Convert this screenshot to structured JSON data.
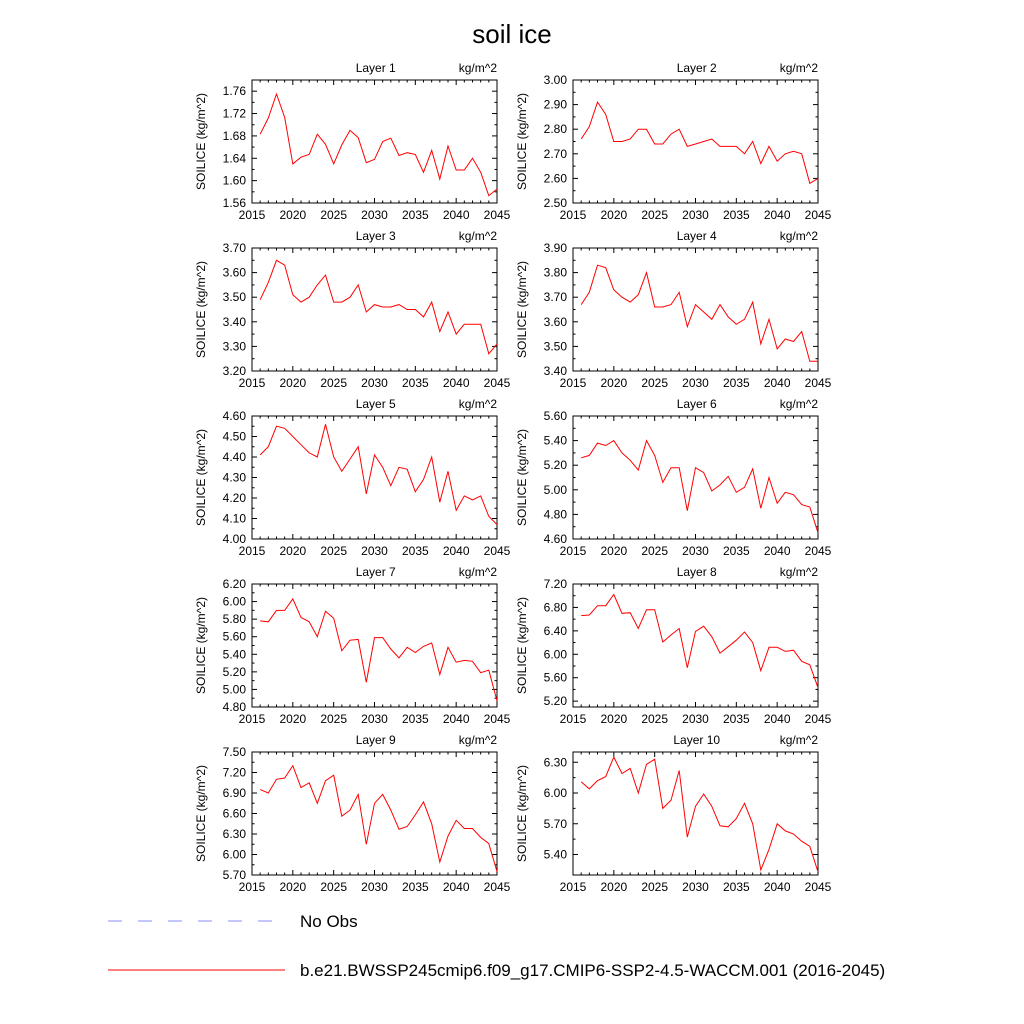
{
  "title": "soil ice",
  "legend": [
    {
      "label": "No Obs",
      "color": "#8c8cff",
      "style": "dashed"
    },
    {
      "label": "b.e21.BWSSP245cmip6.f09_g17.CMIP6-SSP2-4.5-WACCM.001 (2016-2045)",
      "color": "#ff0000",
      "style": "solid"
    }
  ],
  "chart_data": [
    {
      "type": "line",
      "title": "Layer 1",
      "units": "kg/m^2",
      "ylabel": "SOILICE  (kg/m^2)",
      "x_start": 2016,
      "xlim": [
        2015,
        2045
      ],
      "xticks": [
        "2015",
        "2020",
        "2025",
        "2030",
        "2035",
        "2040",
        "2045"
      ],
      "ylim": [
        1.56,
        1.78
      ],
      "yticks": [
        "1.56",
        "1.60",
        "1.64",
        "1.68",
        "1.72",
        "1.76"
      ],
      "series": [
        {
          "color": "#ff0000",
          "values": [
            1.683,
            1.712,
            1.755,
            1.713,
            1.63,
            1.642,
            1.647,
            1.683,
            1.665,
            1.63,
            1.664,
            1.69,
            1.677,
            1.632,
            1.638,
            1.67,
            1.676,
            1.645,
            1.65,
            1.647,
            1.615,
            1.654,
            1.603,
            1.662,
            1.619,
            1.619,
            1.64,
            1.615,
            1.573,
            1.585
          ]
        }
      ]
    },
    {
      "type": "line",
      "title": "Layer 2",
      "units": "kg/m^2",
      "ylabel": "SOILICE  (kg/m^2)",
      "x_start": 2016,
      "xlim": [
        2015,
        2045
      ],
      "xticks": [
        "2015",
        "2020",
        "2025",
        "2030",
        "2035",
        "2040",
        "2045"
      ],
      "ylim": [
        2.5,
        3.0
      ],
      "yticks": [
        "2.50",
        "2.60",
        "2.70",
        "2.80",
        "2.90",
        "3.00"
      ],
      "series": [
        {
          "color": "#ff0000",
          "values": [
            2.76,
            2.81,
            2.91,
            2.86,
            2.75,
            2.75,
            2.76,
            2.8,
            2.8,
            2.74,
            2.74,
            2.78,
            2.8,
            2.73,
            2.74,
            2.75,
            2.76,
            2.73,
            2.73,
            2.73,
            2.7,
            2.75,
            2.66,
            2.73,
            2.67,
            2.7,
            2.71,
            2.7,
            2.58,
            2.6
          ]
        }
      ]
    },
    {
      "type": "line",
      "title": "Layer 3",
      "units": "kg/m^2",
      "ylabel": "SOILICE  (kg/m^2)",
      "x_start": 2016,
      "xlim": [
        2015,
        2045
      ],
      "xticks": [
        "2015",
        "2020",
        "2025",
        "2030",
        "2035",
        "2040",
        "2045"
      ],
      "ylim": [
        3.2,
        3.7
      ],
      "yticks": [
        "3.20",
        "3.30",
        "3.40",
        "3.50",
        "3.60",
        "3.70"
      ],
      "series": [
        {
          "color": "#ff0000",
          "values": [
            3.49,
            3.56,
            3.65,
            3.63,
            3.51,
            3.48,
            3.5,
            3.55,
            3.59,
            3.48,
            3.48,
            3.5,
            3.55,
            3.44,
            3.47,
            3.46,
            3.46,
            3.47,
            3.45,
            3.45,
            3.42,
            3.48,
            3.36,
            3.44,
            3.35,
            3.39,
            3.39,
            3.39,
            3.27,
            3.31
          ]
        }
      ]
    },
    {
      "type": "line",
      "title": "Layer 4",
      "units": "kg/m^2",
      "ylabel": "SOILICE  (kg/m^2)",
      "x_start": 2016,
      "xlim": [
        2015,
        2045
      ],
      "xticks": [
        "2015",
        "2020",
        "2025",
        "2030",
        "2035",
        "2040",
        "2045"
      ],
      "ylim": [
        3.4,
        3.9
      ],
      "yticks": [
        "3.40",
        "3.50",
        "3.60",
        "3.70",
        "3.80",
        "3.90"
      ],
      "series": [
        {
          "color": "#ff0000",
          "values": [
            3.67,
            3.72,
            3.83,
            3.82,
            3.73,
            3.7,
            3.68,
            3.71,
            3.8,
            3.66,
            3.66,
            3.67,
            3.72,
            3.58,
            3.67,
            3.64,
            3.61,
            3.67,
            3.62,
            3.59,
            3.61,
            3.68,
            3.51,
            3.61,
            3.49,
            3.53,
            3.52,
            3.56,
            3.44,
            3.44
          ]
        }
      ]
    },
    {
      "type": "line",
      "title": "Layer 5",
      "units": "kg/m^2",
      "ylabel": "SOILICE  (kg/m^2)",
      "x_start": 2016,
      "xlim": [
        2015,
        2045
      ],
      "xticks": [
        "2015",
        "2020",
        "2025",
        "2030",
        "2035",
        "2040",
        "2045"
      ],
      "ylim": [
        4.0,
        4.6
      ],
      "yticks": [
        "4.00",
        "4.10",
        "4.20",
        "4.30",
        "4.40",
        "4.50",
        "4.60"
      ],
      "series": [
        {
          "color": "#ff0000",
          "values": [
            4.41,
            4.45,
            4.55,
            4.54,
            4.5,
            4.46,
            4.42,
            4.4,
            4.56,
            4.4,
            4.33,
            4.39,
            4.45,
            4.22,
            4.41,
            4.35,
            4.26,
            4.35,
            4.34,
            4.23,
            4.29,
            4.4,
            4.18,
            4.33,
            4.14,
            4.21,
            4.19,
            4.21,
            4.11,
            4.07
          ]
        }
      ]
    },
    {
      "type": "line",
      "title": "Layer 6",
      "units": "kg/m^2",
      "ylabel": "SOILICE  (kg/m^2)",
      "x_start": 2016,
      "xlim": [
        2015,
        2045
      ],
      "xticks": [
        "2015",
        "2020",
        "2025",
        "2030",
        "2035",
        "2040",
        "2045"
      ],
      "ylim": [
        4.6,
        5.6
      ],
      "yticks": [
        "4.60",
        "4.80",
        "5.00",
        "5.20",
        "5.40",
        "5.60"
      ],
      "series": [
        {
          "color": "#ff0000",
          "values": [
            5.26,
            5.28,
            5.38,
            5.36,
            5.4,
            5.3,
            5.24,
            5.16,
            5.4,
            5.28,
            5.06,
            5.18,
            5.18,
            4.83,
            5.18,
            5.14,
            4.99,
            5.04,
            5.11,
            4.98,
            5.02,
            5.17,
            4.85,
            5.1,
            4.89,
            4.98,
            4.96,
            4.88,
            4.86,
            4.65
          ]
        }
      ]
    },
    {
      "type": "line",
      "title": "Layer 7",
      "units": "kg/m^2",
      "ylabel": "SOILICE  (kg/m^2)",
      "x_start": 2016,
      "xlim": [
        2015,
        2045
      ],
      "xticks": [
        "2015",
        "2020",
        "2025",
        "2030",
        "2035",
        "2040",
        "2045"
      ],
      "ylim": [
        4.8,
        6.2
      ],
      "yticks": [
        "4.80",
        "5.00",
        "5.20",
        "5.40",
        "5.60",
        "5.80",
        "6.00",
        "6.20"
      ],
      "series": [
        {
          "color": "#ff0000",
          "values": [
            5.78,
            5.77,
            5.9,
            5.9,
            6.03,
            5.82,
            5.77,
            5.6,
            5.89,
            5.81,
            5.44,
            5.56,
            5.57,
            5.08,
            5.59,
            5.59,
            5.46,
            5.36,
            5.48,
            5.42,
            5.49,
            5.53,
            5.17,
            5.48,
            5.31,
            5.33,
            5.32,
            5.19,
            5.22,
            4.87
          ]
        }
      ]
    },
    {
      "type": "line",
      "title": "Layer 8",
      "units": "kg/m^2",
      "ylabel": "SOILICE  (kg/m^2)",
      "x_start": 2016,
      "xlim": [
        2015,
        2045
      ],
      "xticks": [
        "2015",
        "2020",
        "2025",
        "2030",
        "2035",
        "2040",
        "2045"
      ],
      "ylim": [
        5.1,
        7.2
      ],
      "yticks": [
        "5.20",
        "5.60",
        "6.00",
        "6.40",
        "6.80",
        "7.20"
      ],
      "series": [
        {
          "color": "#ff0000",
          "values": [
            6.66,
            6.67,
            6.83,
            6.83,
            7.02,
            6.7,
            6.71,
            6.44,
            6.76,
            6.76,
            6.21,
            6.33,
            6.44,
            5.77,
            6.39,
            6.48,
            6.3,
            6.02,
            6.13,
            6.24,
            6.38,
            6.2,
            5.72,
            6.12,
            6.12,
            6.05,
            6.07,
            5.88,
            5.82,
            5.43
          ]
        }
      ]
    },
    {
      "type": "line",
      "title": "Layer 9",
      "units": "kg/m^2",
      "ylabel": "SOILICE  (kg/m^2)",
      "x_start": 2016,
      "xlim": [
        2015,
        2045
      ],
      "xticks": [
        "2015",
        "2020",
        "2025",
        "2030",
        "2035",
        "2040",
        "2045"
      ],
      "ylim": [
        5.7,
        7.5
      ],
      "yticks": [
        "5.70",
        "6.00",
        "6.30",
        "6.60",
        "6.90",
        "7.20",
        "7.50"
      ],
      "series": [
        {
          "color": "#ff0000",
          "values": [
            6.95,
            6.9,
            7.1,
            7.12,
            7.3,
            6.98,
            7.05,
            6.75,
            7.08,
            7.16,
            6.56,
            6.65,
            6.88,
            6.15,
            6.75,
            6.88,
            6.65,
            6.37,
            6.41,
            6.58,
            6.77,
            6.45,
            5.89,
            6.27,
            6.5,
            6.38,
            6.38,
            6.25,
            6.16,
            5.75
          ]
        }
      ]
    },
    {
      "type": "line",
      "title": "Layer 10",
      "units": "kg/m^2",
      "ylabel": "SOILICE  (kg/m^2)",
      "x_start": 2016,
      "xlim": [
        2015,
        2045
      ],
      "xticks": [
        "2015",
        "2020",
        "2025",
        "2030",
        "2035",
        "2040",
        "2045"
      ],
      "ylim": [
        5.2,
        6.4
      ],
      "yticks": [
        "5.40",
        "5.70",
        "6.00",
        "6.30"
      ],
      "series": [
        {
          "color": "#ff0000",
          "values": [
            6.11,
            6.04,
            6.12,
            6.16,
            6.35,
            6.19,
            6.24,
            6.0,
            6.28,
            6.33,
            5.85,
            5.93,
            6.22,
            5.57,
            5.87,
            5.99,
            5.87,
            5.68,
            5.67,
            5.75,
            5.9,
            5.7,
            5.25,
            5.45,
            5.7,
            5.63,
            5.6,
            5.53,
            5.48,
            5.23
          ]
        }
      ]
    }
  ]
}
